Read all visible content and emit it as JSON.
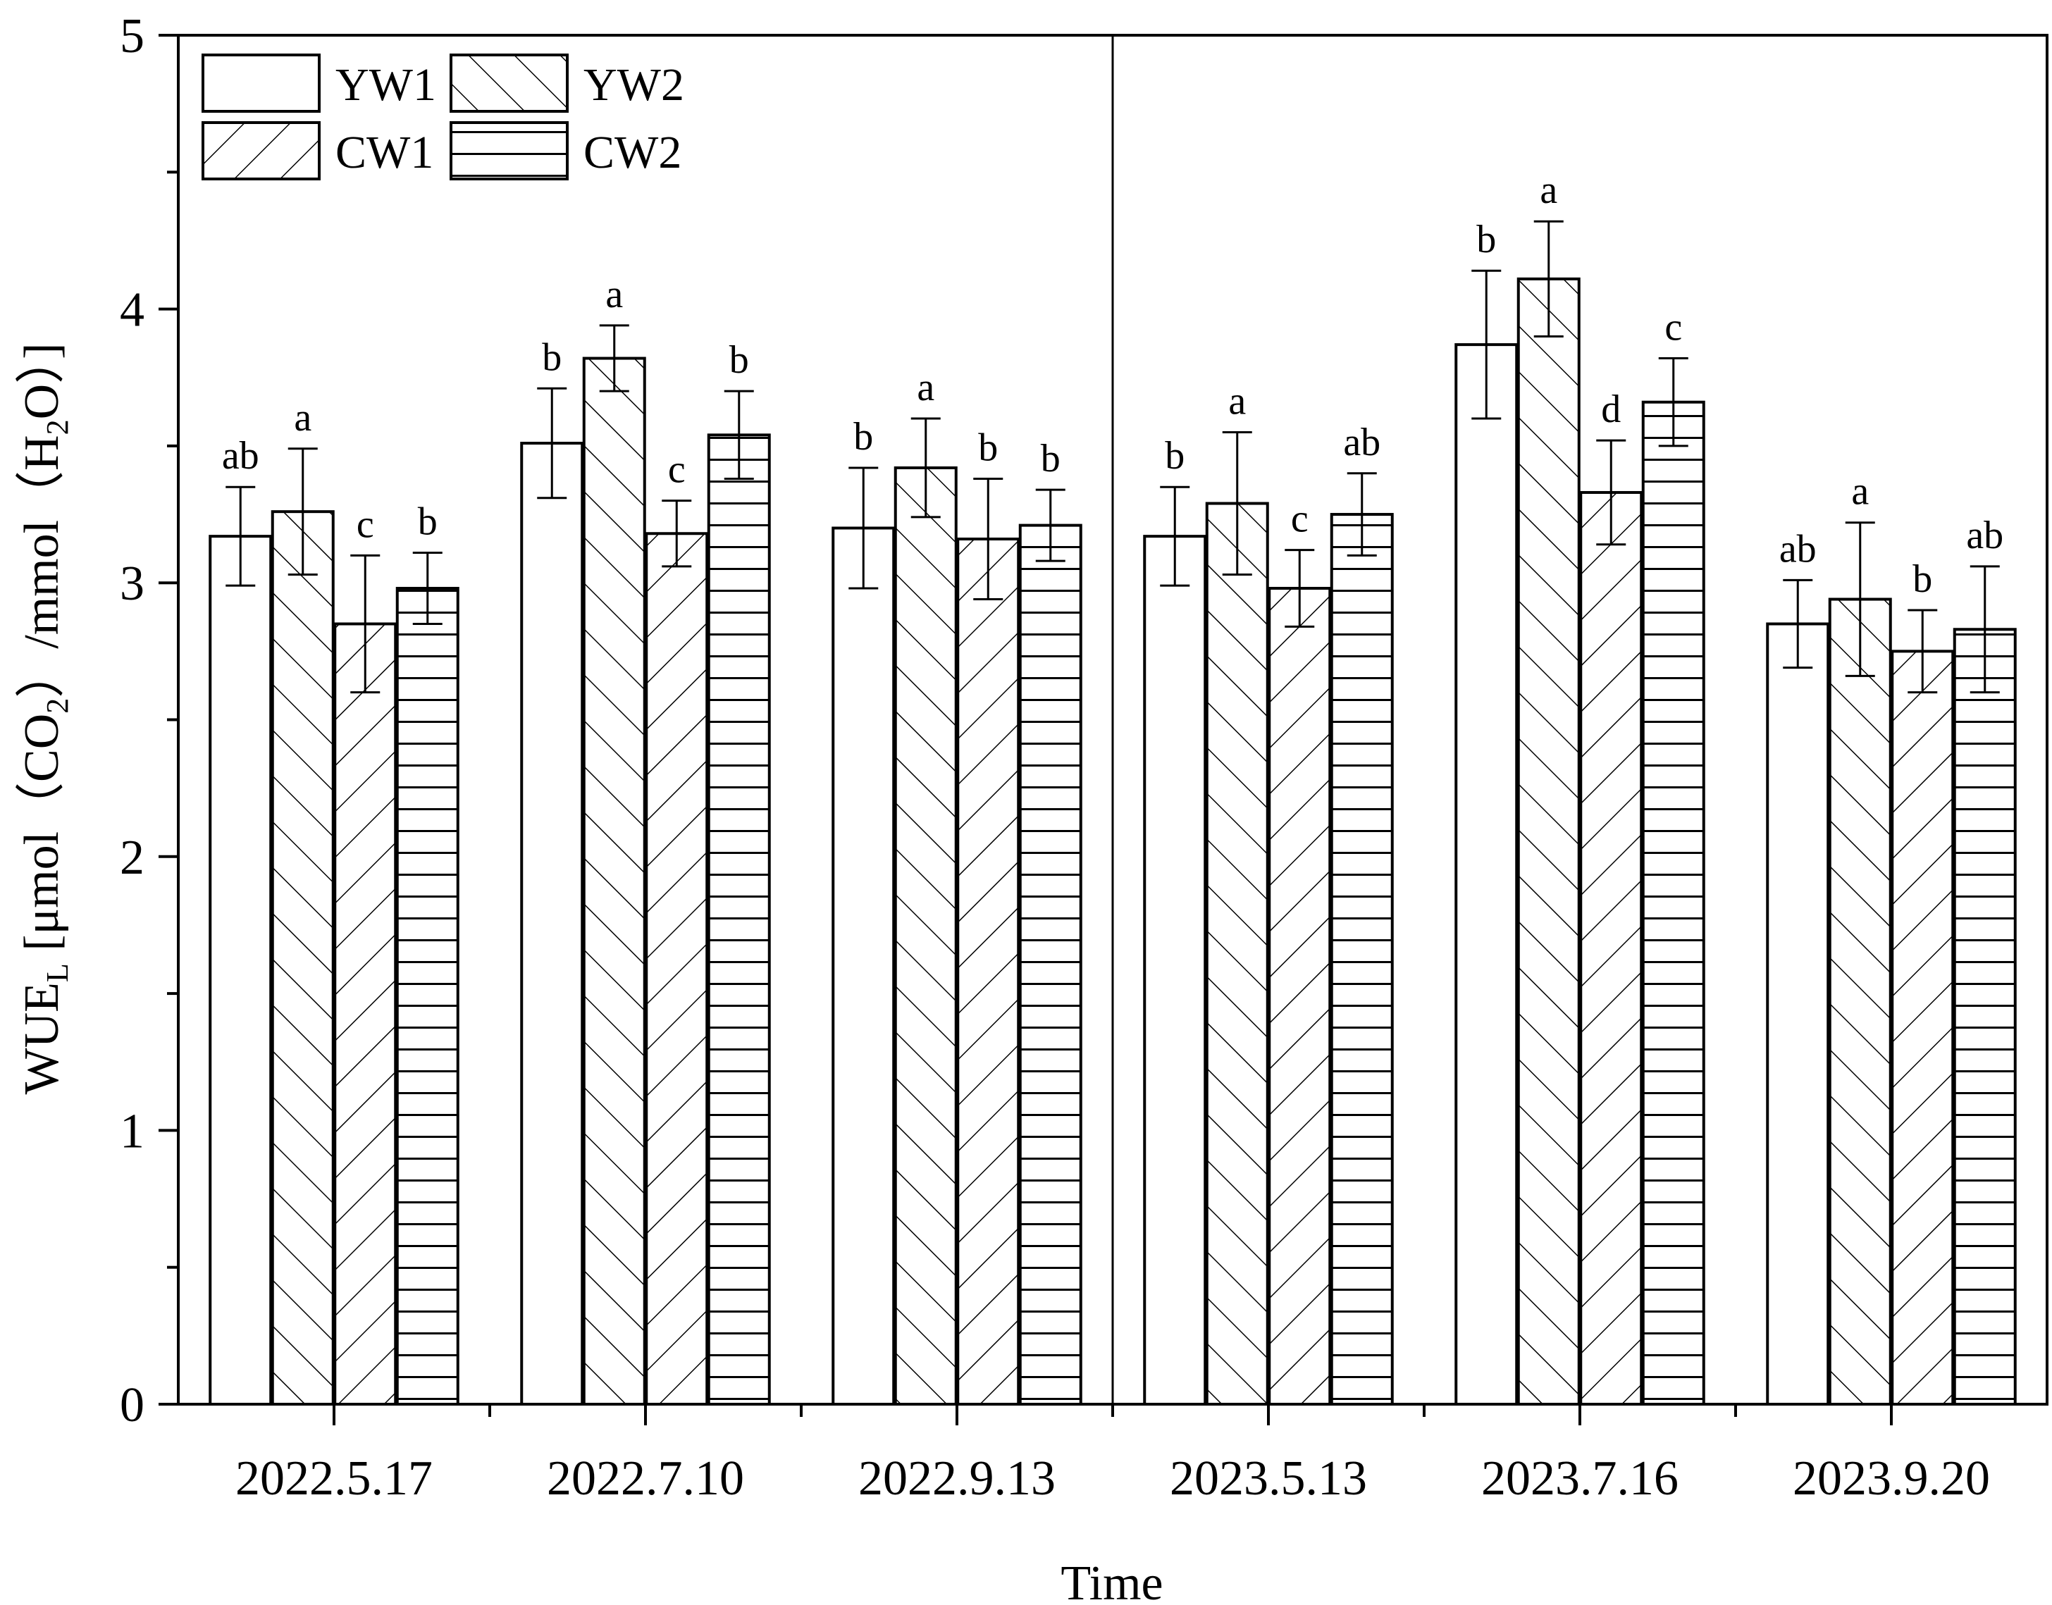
{
  "chart_data": {
    "type": "bar",
    "title": "",
    "xlabel": "Time",
    "ylabel": "WUE_L [μmol（CO2）/mmol（H2O）]",
    "ylabel_parts": [
      "WUE",
      "L",
      " [μmol（CO",
      "2",
      "）/mmol（H",
      "2",
      "O）]"
    ],
    "ylim": [
      0,
      5
    ],
    "yticks": [
      "0",
      "1",
      "2",
      "3",
      "4",
      "5"
    ],
    "grid": false,
    "legend_position": "top-left",
    "categories": [
      "2022.5.17",
      "2022.7.10",
      "2022.9.13",
      "2023.5.13",
      "2023.7.16",
      "2023.9.20"
    ],
    "series": [
      {
        "name": "YW1",
        "pattern": "blank",
        "values": [
          3.17,
          3.51,
          3.2,
          3.17,
          3.87,
          2.85
        ],
        "errors": [
          0.18,
          0.2,
          0.22,
          0.18,
          0.27,
          0.16
        ],
        "letters": [
          "ab",
          "b",
          "b",
          "b",
          "b",
          "ab"
        ]
      },
      {
        "name": "YW2",
        "pattern": "diagonal-up",
        "values": [
          3.26,
          3.82,
          3.42,
          3.29,
          4.11,
          2.94
        ],
        "errors": [
          0.23,
          0.12,
          0.18,
          0.26,
          0.21,
          0.28
        ],
        "letters": [
          "a",
          "a",
          "a",
          "a",
          "a",
          "a"
        ]
      },
      {
        "name": "CW1",
        "pattern": "diagonal-down",
        "values": [
          2.85,
          3.18,
          3.16,
          2.98,
          3.33,
          2.75
        ],
        "errors": [
          0.25,
          0.12,
          0.22,
          0.14,
          0.19,
          0.15
        ],
        "letters": [
          "c",
          "c",
          "b",
          "c",
          "d",
          "b"
        ]
      },
      {
        "name": "CW2",
        "pattern": "horizontal",
        "values": [
          2.98,
          3.54,
          3.21,
          3.25,
          3.66,
          2.83
        ],
        "errors": [
          0.13,
          0.16,
          0.13,
          0.15,
          0.16,
          0.23
        ],
        "letters": [
          "b",
          "b",
          "b",
          "ab",
          "c",
          "ab"
        ]
      }
    ]
  }
}
